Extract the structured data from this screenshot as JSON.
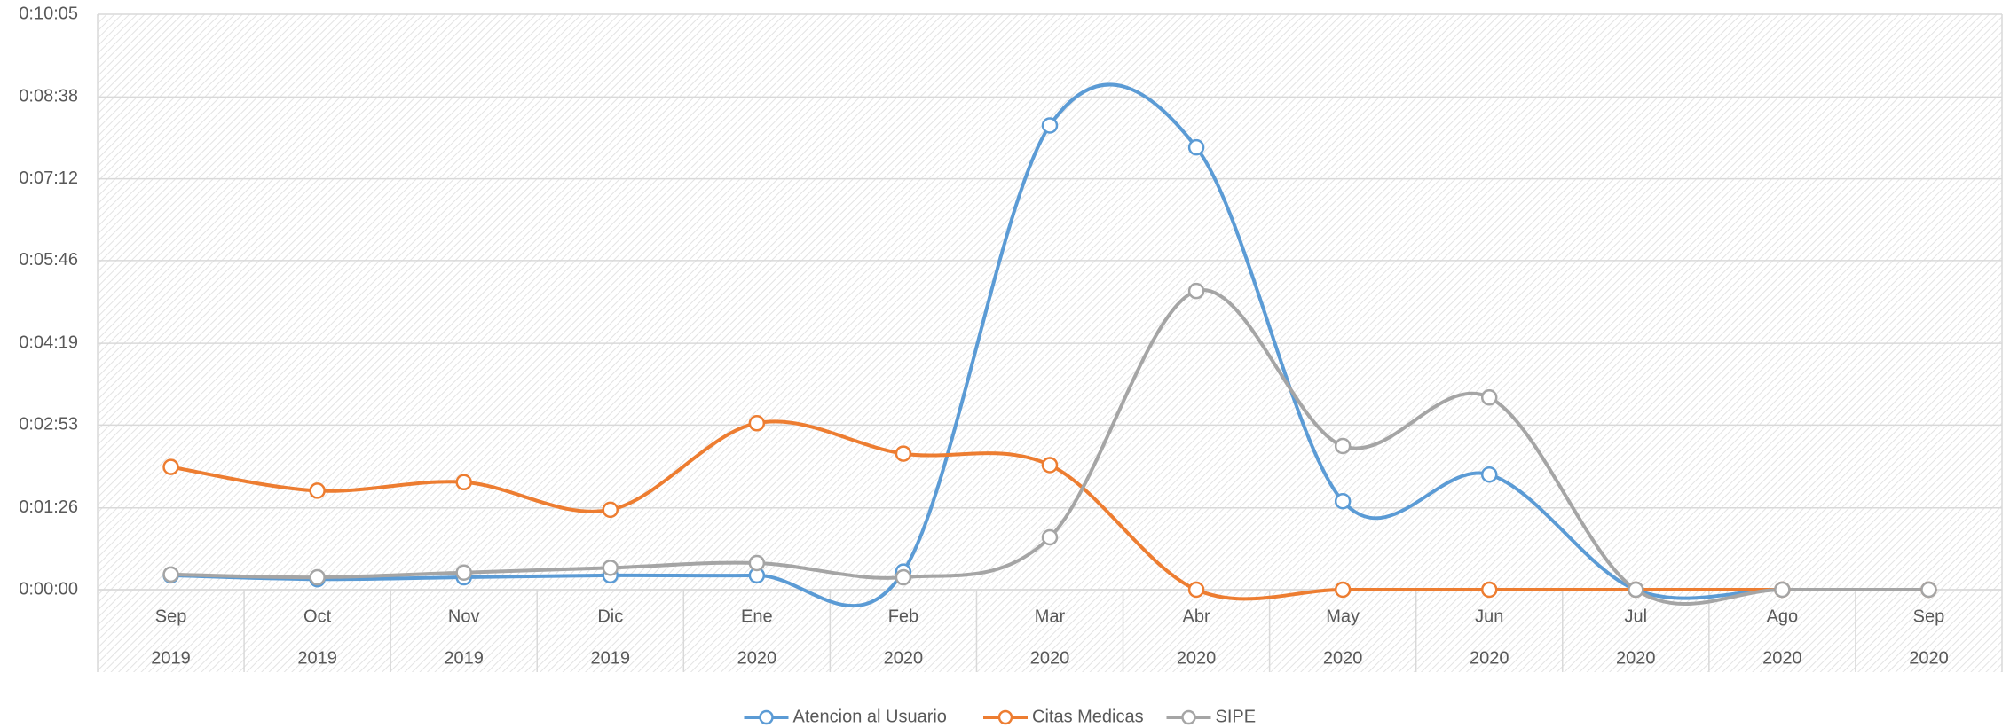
{
  "chart_data": {
    "type": "line",
    "smooth": true,
    "categories": [
      "Sep",
      "Oct",
      "Nov",
      "Dic",
      "Ene",
      "Feb",
      "Mar",
      "Abr",
      "May",
      "Jun",
      "Jul",
      "Ago",
      "Sep"
    ],
    "category_years": [
      "2019",
      "2019",
      "2019",
      "2019",
      "2020",
      "2020",
      "2020",
      "2020",
      "2020",
      "2020",
      "2020",
      "2020",
      "2020"
    ],
    "series": [
      {
        "name": "Atencion al Usuario",
        "color": "#5b9bd5",
        "values": [
          15,
          11,
          13,
          15,
          15,
          19,
          488,
          465,
          93,
          121,
          0,
          0,
          0
        ]
      },
      {
        "name": "Citas Medicas",
        "color": "#ed7d31",
        "values": [
          129,
          104,
          113,
          84,
          175,
          143,
          131,
          0,
          0,
          0,
          0,
          0,
          0
        ]
      },
      {
        "name": "SIPE",
        "color": "#a5a5a5",
        "values": [
          16,
          13,
          18,
          23,
          28,
          13,
          55,
          314,
          151,
          202,
          0,
          0,
          0
        ]
      }
    ],
    "ylim": [
      0,
      605
    ],
    "yticks": [
      {
        "value": 0,
        "label": "0:00:00"
      },
      {
        "value": 86,
        "label": "0:01:26"
      },
      {
        "value": 173,
        "label": "0:02:53"
      },
      {
        "value": 259,
        "label": "0:04:19"
      },
      {
        "value": 346,
        "label": "0:05:46"
      },
      {
        "value": 432,
        "label": "0:07:12"
      },
      {
        "value": 518,
        "label": "0:08:38"
      },
      {
        "value": 605,
        "label": "0:10:05"
      }
    ],
    "grid": true,
    "legend": "bottom"
  }
}
